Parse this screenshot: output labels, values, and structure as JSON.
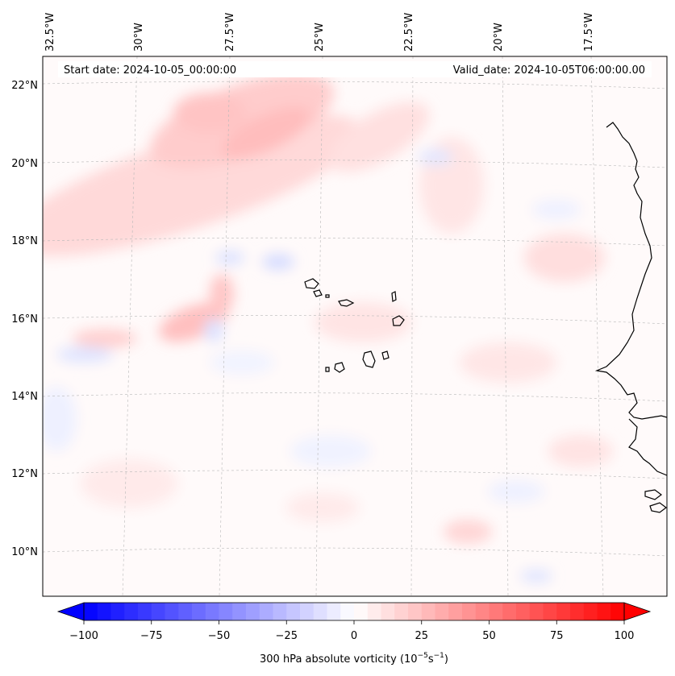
{
  "map": {
    "start_label": "Start date: 2024-10-05_00:00:00",
    "valid_label": "Valid_date: 2024-10-05T06:00:00.00",
    "lon_labels": [
      "32.5°W",
      "30°W",
      "27.5°W",
      "25°W",
      "22.5°W",
      "20°W",
      "17.5°W"
    ],
    "lat_labels": [
      "22°N",
      "20°N",
      "18°N",
      "16°N",
      "14°N",
      "12°N",
      "10°N"
    ],
    "variable": "300 hPa absolute vorticity",
    "units_label": "300 hPa absolute vorticity (10",
    "units_exp1": "−5",
    "units_mid": "s",
    "units_exp2": "−1",
    "units_close": ")"
  },
  "colorbar": {
    "ticks": [
      "−100",
      "−75",
      "−50",
      "−25",
      "0",
      "25",
      "50",
      "75",
      "100"
    ],
    "range": [
      -100,
      100
    ],
    "colormap": "bwr",
    "negative_color": "#0000ff",
    "positive_color": "#ff0000"
  }
}
